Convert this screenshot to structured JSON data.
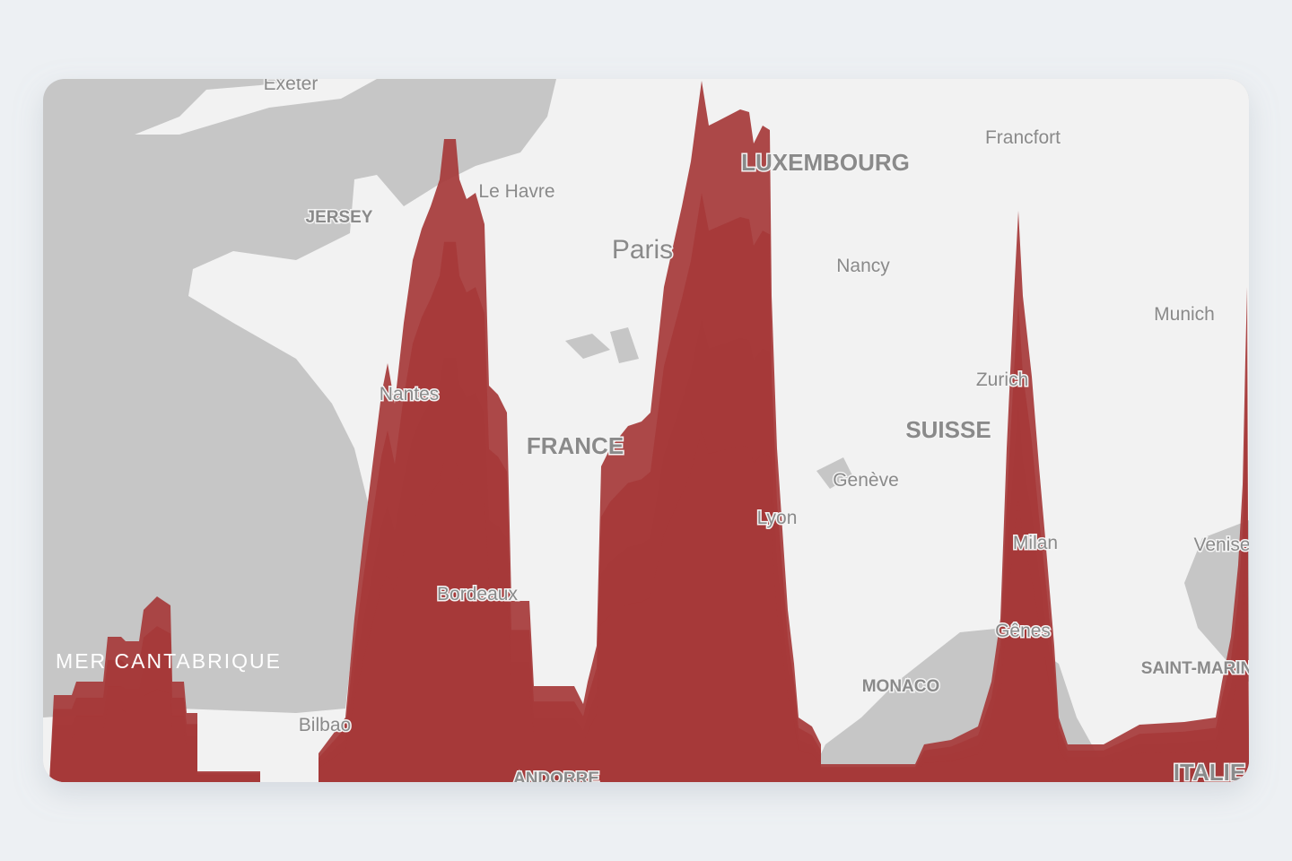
{
  "map": {
    "labels": [
      "Exeter",
      "JERSEY",
      "Le Havre",
      "Paris",
      "LUXEMBOURG",
      "Francfort",
      "Nancy",
      "Munich",
      "Nantes",
      "FRANCE",
      "Zurich",
      "SUISSE",
      "Genève",
      "Lyon",
      "Milan",
      "Venise",
      "Bordeaux",
      "MER CANTABRIQUE",
      "Gênes",
      "SAINT-MARIN",
      "MONACO",
      "Bilbao",
      "ANDORRE",
      "ITALIE"
    ]
  }
}
